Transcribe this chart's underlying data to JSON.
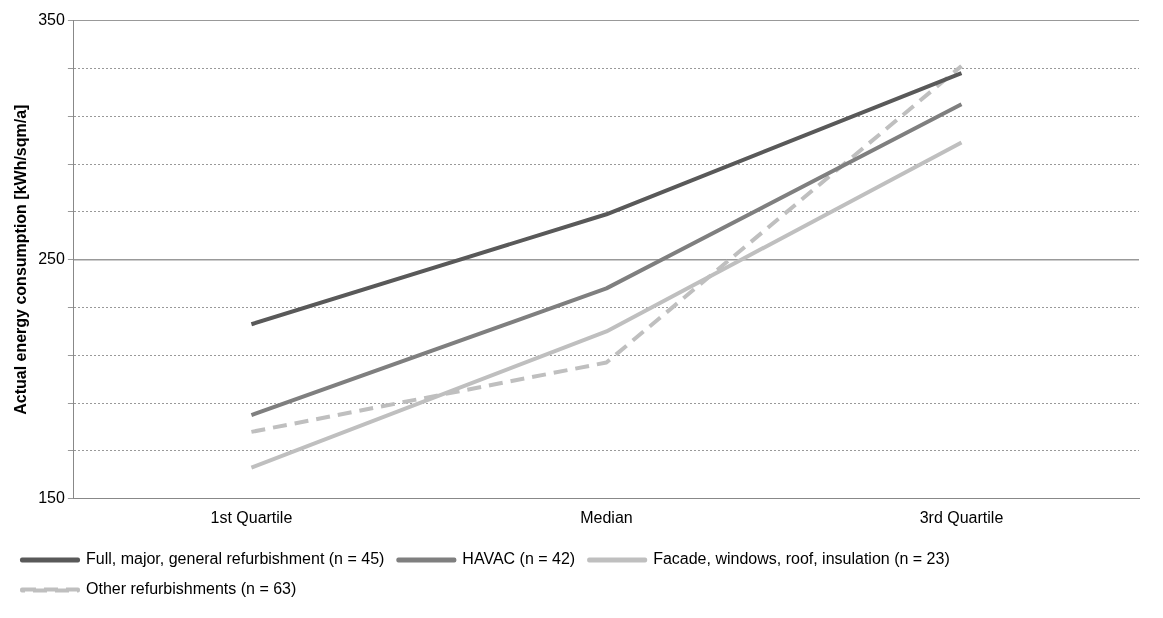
{
  "chart_data": {
    "type": "line",
    "ylabel": "Actual energy consumption [kWh/sqm/a]",
    "categories": [
      "1st Quartile",
      "Median",
      "3rd Quartile"
    ],
    "series": [
      {
        "name": "Full, major, general refurbishment (n = 45)",
        "color": "#595959",
        "values": [
          223,
          269,
          328
        ]
      },
      {
        "name": "HAVAC (n = 42)",
        "color": "#7f7f7f",
        "values": [
          185,
          238,
          315
        ]
      },
      {
        "name": "Facade, windows, roof, insulation (n = 23)",
        "color": "#bfbfbf",
        "values": [
          163,
          220,
          299
        ]
      },
      {
        "name": "Other refurbishments (n = 63)",
        "color": "#bfbfbf",
        "values": [
          178,
          207,
          331
        ],
        "line_style": "dashed"
      }
    ],
    "ylim": [
      150,
      350
    ],
    "yticks": [
      150,
      {
        "value": 170,
        "label": null
      },
      {
        "value": 190,
        "label": null
      },
      {
        "value": 210,
        "label": null
      },
      {
        "value": 230,
        "label": null
      },
      250,
      {
        "value": 270,
        "label": null
      },
      {
        "value": 290,
        "label": null
      },
      {
        "value": 310,
        "label": null
      },
      {
        "value": 330,
        "label": null
      },
      350
    ],
    "ref_lines": [
      {
        "axis": "y",
        "value": 250,
        "color": "#999999",
        "line_style": "solid"
      }
    ],
    "grid": "y",
    "legend": "bottom",
    "marker": "none",
    "line_style": "solid"
  }
}
